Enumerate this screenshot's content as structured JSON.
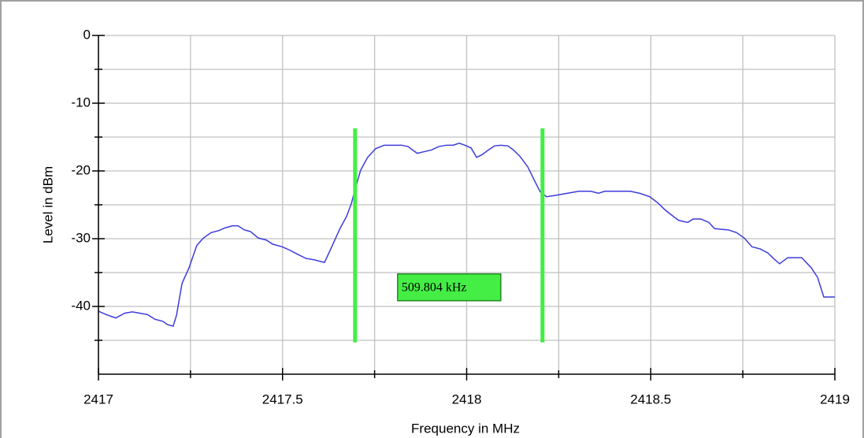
{
  "chart_data": {
    "type": "line",
    "x_label": "Frequency in MHz",
    "y_label": "Level in dBm",
    "xlim": [
      2417,
      2419
    ],
    "xticks": [
      2417,
      2417.5,
      2418,
      2418.5,
      2419
    ],
    "x_minor_ticks": [
      2417.25,
      2417.75,
      2418.25,
      2418.75
    ],
    "ylim": [
      -50,
      0
    ],
    "yticks": [
      -40,
      -30,
      -20,
      -10,
      0
    ],
    "y_minor_ticks": [
      -45,
      -35,
      -25,
      -15,
      -5
    ],
    "grid": true,
    "series": [
      {
        "color": "#3b3bdc",
        "x": [
          2417,
          2417.021,
          2417.047,
          2417.071,
          2417.092,
          2417.113,
          2417.133,
          2417.154,
          2417.175,
          2417.188,
          2417.203,
          2417.212,
          2417.227,
          2417.246,
          2417.267,
          2417.285,
          2417.306,
          2417.327,
          2417.344,
          2417.364,
          2417.379,
          2417.396,
          2417.413,
          2417.434,
          2417.456,
          2417.473,
          2417.499,
          2417.52,
          2417.541,
          2417.563,
          2417.584,
          2417.614,
          2417.631,
          2417.656,
          2417.674,
          2417.687,
          2417.697,
          2417.712,
          2417.731,
          2417.753,
          2417.776,
          2417.802,
          2417.824,
          2417.841,
          2417.853,
          2417.866,
          2417.881,
          2417.905,
          2417.924,
          2417.945,
          2417.963,
          2417.98,
          2417.995,
          2418.012,
          2418.027,
          2418.042,
          2418.059,
          2418.076,
          2418.093,
          2418.112,
          2418.127,
          2418.144,
          2418.166,
          2418.183,
          2418.2,
          2418.217,
          2418.241,
          2418.273,
          2418.305,
          2418.337,
          2418.358,
          2418.375,
          2418.412,
          2418.444,
          2418.47,
          2418.497,
          2418.519,
          2418.54,
          2418.561,
          2418.576,
          2418.6,
          2418.615,
          2418.636,
          2418.658,
          2418.673,
          2418.69,
          2418.711,
          2418.733,
          2418.754,
          2418.775,
          2418.797,
          2418.818,
          2418.835,
          2418.85,
          2418.872,
          2418.91,
          2418.936,
          2418.953,
          2418.97,
          2419
        ],
        "values": [
          -40.7,
          -41.2,
          -41.7,
          -41.0,
          -40.8,
          -41.0,
          -41.2,
          -41.9,
          -42.2,
          -42.7,
          -42.9,
          -41.3,
          -36.6,
          -34.3,
          -31.0,
          -29.9,
          -29.1,
          -28.8,
          -28.4,
          -28.1,
          -28.1,
          -28.7,
          -28.95,
          -29.9,
          -30.2,
          -30.8,
          -31.2,
          -31.7,
          -32.3,
          -32.9,
          -33.1,
          -33.5,
          -31.5,
          -28.5,
          -26.7,
          -24.8,
          -22.7,
          -19.9,
          -18.0,
          -16.7,
          -16.2,
          -16.2,
          -16.2,
          -16.4,
          -16.9,
          -17.4,
          -17.2,
          -16.9,
          -16.4,
          -16.2,
          -16.2,
          -15.9,
          -16.2,
          -16.6,
          -18.0,
          -17.6,
          -16.9,
          -16.3,
          -16.2,
          -16.3,
          -16.9,
          -17.8,
          -19.4,
          -21.3,
          -23.1,
          -23.8,
          -23.6,
          -23.3,
          -23.0,
          -23.0,
          -23.3,
          -23.0,
          -23.0,
          -23.0,
          -23.3,
          -23.8,
          -24.7,
          -25.8,
          -26.7,
          -27.3,
          -27.6,
          -27.1,
          -27.1,
          -27.6,
          -28.5,
          -28.6,
          -28.7,
          -29.1,
          -29.9,
          -31.2,
          -31.5,
          -32.1,
          -33.0,
          -33.7,
          -32.8,
          -32.8,
          -34.3,
          -35.7,
          -38.6,
          -38.6
        ]
      }
    ],
    "markers": {
      "color": "#44ee44",
      "x": [
        2417.697,
        2418.206
      ],
      "ylim": [
        -45.3,
        -13.7
      ]
    },
    "annotation": "509.804 kHz"
  }
}
